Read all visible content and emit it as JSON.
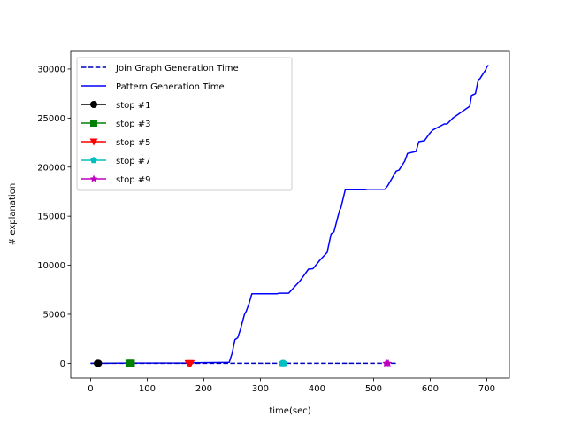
{
  "chart_data": {
    "type": "line",
    "xlabel": "time(sec)",
    "ylabel": "# explanation",
    "xlim": [
      -35,
      740
    ],
    "ylim": [
      -1500,
      31800
    ],
    "xticks": [
      0,
      100,
      200,
      300,
      400,
      500,
      600,
      700
    ],
    "yticks": [
      0,
      5000,
      10000,
      15000,
      20000,
      25000,
      30000
    ],
    "legend_position": "top-left",
    "series": [
      {
        "name": "Join Graph Generation Time",
        "color": "#0000bf",
        "style": "dashed",
        "marker": "none",
        "x": [
          0,
          540
        ],
        "y": [
          0,
          0
        ]
      },
      {
        "name": "Pattern Generation Time",
        "color": "#0000ff",
        "style": "solid",
        "marker": "none",
        "x": [
          0,
          13,
          70,
          175,
          180,
          245,
          250,
          255,
          260,
          265,
          272,
          275,
          280,
          285,
          290,
          300,
          330,
          333,
          350,
          370,
          385,
          393,
          405,
          418,
          425,
          430,
          440,
          442,
          450,
          455,
          465,
          475,
          485,
          490,
          500,
          520,
          525,
          540,
          545,
          555,
          560,
          575,
          580,
          590,
          600,
          605,
          625,
          630,
          640,
          670,
          673,
          680,
          685,
          688,
          690,
          698,
          700,
          703
        ],
        "y": [
          0,
          0,
          20,
          40,
          60,
          100,
          1000,
          2400,
          2600,
          3500,
          5000,
          5300,
          6100,
          7100,
          7100,
          7100,
          7100,
          7150,
          7150,
          8400,
          9600,
          9650,
          10500,
          11300,
          13200,
          13400,
          15600,
          15800,
          17700,
          17700,
          17700,
          17700,
          17700,
          17750,
          17750,
          17750,
          18100,
          19600,
          19700,
          20600,
          21400,
          21600,
          22600,
          22700,
          23500,
          23800,
          24400,
          24400,
          25000,
          26200,
          27300,
          27500,
          28900,
          29000,
          29200,
          29900,
          30200,
          30400
        ]
      },
      {
        "name": "stop #1",
        "color": "#000000",
        "style": "solid",
        "marker": "circle",
        "x": [
          12,
          13,
          14
        ],
        "y": [
          0,
          0,
          0
        ]
      },
      {
        "name": "stop #3",
        "color": "#008000",
        "style": "solid",
        "marker": "square",
        "x": [
          68,
          70,
          72
        ],
        "y": [
          0,
          0,
          0
        ]
      },
      {
        "name": "stop #5",
        "color": "#ff0000",
        "style": "solid",
        "marker": "triangle-down",
        "x": [
          173,
          175,
          177
        ],
        "y": [
          0,
          0,
          0
        ]
      },
      {
        "name": "stop #7",
        "color": "#00bfbf",
        "style": "solid",
        "marker": "pentagon",
        "x": [
          338,
          340,
          342
        ],
        "y": [
          0,
          0,
          0
        ]
      },
      {
        "name": "stop #9",
        "color": "#bf00bf",
        "style": "solid",
        "marker": "star",
        "x": [
          522,
          524,
          526
        ],
        "y": [
          0,
          0,
          0
        ]
      }
    ]
  }
}
